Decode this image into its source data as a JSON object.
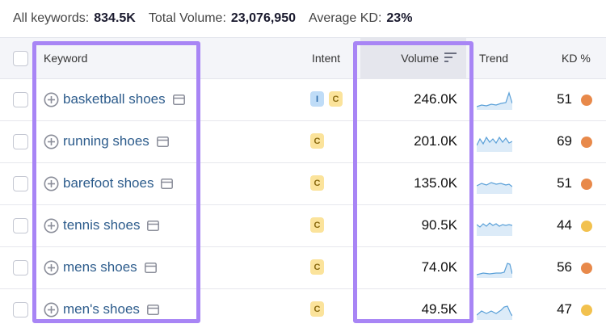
{
  "summary": {
    "keywords_label": "All keywords:",
    "keywords_value": "834.5K",
    "volume_label": "Total Volume:",
    "volume_value": "23,076,950",
    "kd_label": "Average KD:",
    "kd_value": "23%"
  },
  "columns": {
    "keyword": "Keyword",
    "intent": "Intent",
    "volume": "Volume",
    "trend": "Trend",
    "kd": "KD %"
  },
  "rows": [
    {
      "keyword": "basketball shoes",
      "intent": [
        "I",
        "C"
      ],
      "volume": "246.0K",
      "kd": "51",
      "kd_color": "#e8894a"
    },
    {
      "keyword": "running shoes",
      "intent": [
        "C"
      ],
      "volume": "201.0K",
      "kd": "69",
      "kd_color": "#e8894a"
    },
    {
      "keyword": "barefoot shoes",
      "intent": [
        "C"
      ],
      "volume": "135.0K",
      "kd": "51",
      "kd_color": "#e8894a"
    },
    {
      "keyword": "tennis shoes",
      "intent": [
        "C"
      ],
      "volume": "90.5K",
      "kd": "44",
      "kd_color": "#f2c14e"
    },
    {
      "keyword": "mens shoes",
      "intent": [
        "C"
      ],
      "volume": "74.0K",
      "kd": "56",
      "kd_color": "#e8894a"
    },
    {
      "keyword": "men's shoes",
      "intent": [
        "C"
      ],
      "volume": "49.5K",
      "kd": "47",
      "kd_color": "#f2c14e"
    }
  ],
  "colors": {
    "link": "#2d5c8c",
    "highlight": "#a885f5",
    "intent_i": "#bfdcf7",
    "intent_c": "#fbe39b",
    "trend_line": "#5aa0d8"
  },
  "icons": [
    "add-keyword-icon",
    "serp-features-icon",
    "sort-icon"
  ]
}
